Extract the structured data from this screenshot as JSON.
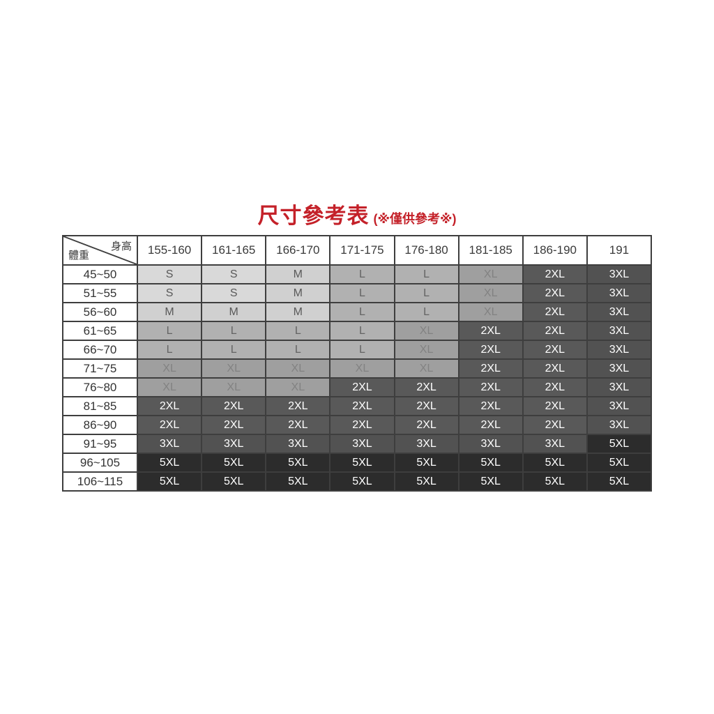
{
  "title": {
    "main": "尺寸參考表",
    "note": "(※僅供參考※)",
    "color": "#c42129"
  },
  "table": {
    "corner": {
      "top_right": "身高",
      "bottom_left": "體重"
    },
    "height_columns": [
      "155-160",
      "161-165",
      "166-170",
      "171-175",
      "176-180",
      "181-185",
      "186-190",
      "191"
    ],
    "rows": [
      {
        "weight": "45~50",
        "sizes": [
          "S",
          "S",
          "M",
          "L",
          "L",
          "XL",
          "2XL",
          "3XL"
        ]
      },
      {
        "weight": "51~55",
        "sizes": [
          "S",
          "S",
          "M",
          "L",
          "L",
          "XL",
          "2XL",
          "3XL"
        ]
      },
      {
        "weight": "56~60",
        "sizes": [
          "M",
          "M",
          "M",
          "L",
          "L",
          "XL",
          "2XL",
          "3XL"
        ]
      },
      {
        "weight": "61~65",
        "sizes": [
          "L",
          "L",
          "L",
          "L",
          "XL",
          "2XL",
          "2XL",
          "3XL"
        ]
      },
      {
        "weight": "66~70",
        "sizes": [
          "L",
          "L",
          "L",
          "L",
          "XL",
          "2XL",
          "2XL",
          "3XL"
        ]
      },
      {
        "weight": "71~75",
        "sizes": [
          "XL",
          "XL",
          "XL",
          "XL",
          "XL",
          "2XL",
          "2XL",
          "3XL"
        ]
      },
      {
        "weight": "76~80",
        "sizes": [
          "XL",
          "XL",
          "XL",
          "2XL",
          "2XL",
          "2XL",
          "2XL",
          "3XL"
        ]
      },
      {
        "weight": "81~85",
        "sizes": [
          "2XL",
          "2XL",
          "2XL",
          "2XL",
          "2XL",
          "2XL",
          "2XL",
          "3XL"
        ]
      },
      {
        "weight": "86~90",
        "sizes": [
          "2XL",
          "2XL",
          "2XL",
          "2XL",
          "2XL",
          "2XL",
          "2XL",
          "3XL"
        ]
      },
      {
        "weight": "91~95",
        "sizes": [
          "3XL",
          "3XL",
          "3XL",
          "3XL",
          "3XL",
          "3XL",
          "3XL",
          "5XL"
        ]
      },
      {
        "weight": "96~105",
        "sizes": [
          "5XL",
          "5XL",
          "5XL",
          "5XL",
          "5XL",
          "5XL",
          "5XL",
          "5XL"
        ]
      },
      {
        "weight": "106~115",
        "sizes": [
          "5XL",
          "5XL",
          "5XL",
          "5XL",
          "5XL",
          "5XL",
          "5XL",
          "5XL"
        ]
      }
    ],
    "size_styles": {
      "S": {
        "bg": "#d9d9d9",
        "fg": "#595959"
      },
      "M": {
        "bg": "#d0d0d0",
        "fg": "#595959"
      },
      "L": {
        "bg": "#b1b1b1",
        "fg": "#646464"
      },
      "XL": {
        "bg": "#9f9f9f",
        "fg": "#828282"
      },
      "2XL": {
        "bg": "#595959",
        "fg": "#ffffff"
      },
      "3XL": {
        "bg": "#525252",
        "fg": "#ffffff"
      },
      "5XL": {
        "bg": "#2c2c2c",
        "fg": "#ffffff"
      }
    },
    "border_color": "#3e3e3e"
  },
  "chart_data": {
    "type": "table",
    "title": "尺寸參考表 (※僅供參考※)",
    "corner_axis_labels": {
      "columns": "身高",
      "rows": "體重"
    },
    "columns": [
      "155-160",
      "161-165",
      "166-170",
      "171-175",
      "176-180",
      "181-185",
      "186-190",
      "191"
    ],
    "row_labels": [
      "45~50",
      "51~55",
      "56~60",
      "61~65",
      "66~70",
      "71~75",
      "76~80",
      "81~85",
      "86~90",
      "91~95",
      "96~105",
      "106~115"
    ],
    "cells": [
      [
        "S",
        "S",
        "M",
        "L",
        "L",
        "XL",
        "2XL",
        "3XL"
      ],
      [
        "S",
        "S",
        "M",
        "L",
        "L",
        "XL",
        "2XL",
        "3XL"
      ],
      [
        "M",
        "M",
        "M",
        "L",
        "L",
        "XL",
        "2XL",
        "3XL"
      ],
      [
        "L",
        "L",
        "L",
        "L",
        "XL",
        "2XL",
        "2XL",
        "3XL"
      ],
      [
        "L",
        "L",
        "L",
        "L",
        "XL",
        "2XL",
        "2XL",
        "3XL"
      ],
      [
        "XL",
        "XL",
        "XL",
        "XL",
        "XL",
        "2XL",
        "2XL",
        "3XL"
      ],
      [
        "XL",
        "XL",
        "XL",
        "2XL",
        "2XL",
        "2XL",
        "2XL",
        "3XL"
      ],
      [
        "2XL",
        "2XL",
        "2XL",
        "2XL",
        "2XL",
        "2XL",
        "2XL",
        "3XL"
      ],
      [
        "2XL",
        "2XL",
        "2XL",
        "2XL",
        "2XL",
        "2XL",
        "2XL",
        "3XL"
      ],
      [
        "3XL",
        "3XL",
        "3XL",
        "3XL",
        "3XL",
        "3XL",
        "3XL",
        "5XL"
      ],
      [
        "5XL",
        "5XL",
        "5XL",
        "5XL",
        "5XL",
        "5XL",
        "5XL",
        "5XL"
      ],
      [
        "5XL",
        "5XL",
        "5XL",
        "5XL",
        "5XL",
        "5XL",
        "5XL",
        "5XL"
      ]
    ]
  }
}
